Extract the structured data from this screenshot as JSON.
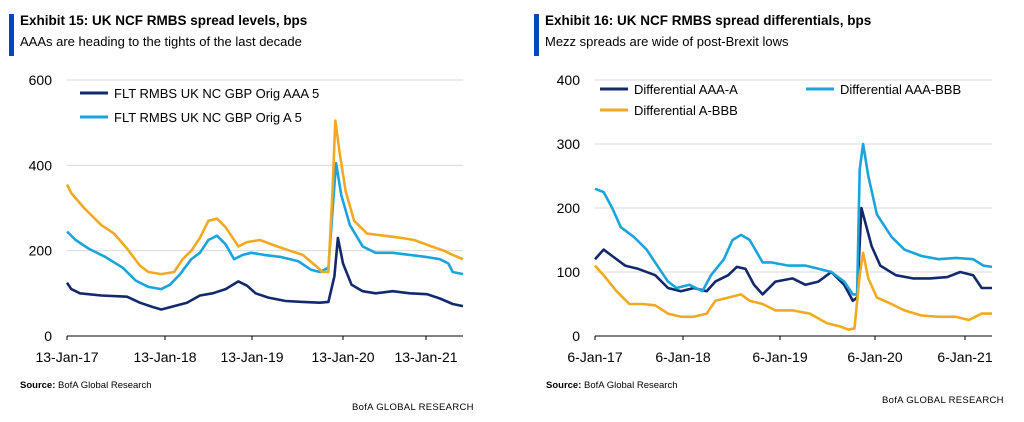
{
  "colors": {
    "accent": "#0047BB",
    "navy": "#13296B",
    "lightblue": "#1BA3DC",
    "orange": "#F2A922"
  },
  "exhibits": [
    {
      "title": "Exhibit 15: UK NCF RMBS spread levels, bps",
      "subtitle": "AAAs are heading to the tights of the last decade",
      "source_label": "Source:",
      "source_text": "BofA Global Research",
      "footer": "BofA GLOBAL RESEARCH"
    },
    {
      "title": "Exhibit 16: UK NCF RMBS spread differentials, bps",
      "subtitle": "Mezz spreads are wide of post-Brexit lows",
      "source_label": "Source:",
      "source_text": "BofA Global Research",
      "footer": "BofA GLOBAL RESEARCH"
    }
  ],
  "chart_data": [
    {
      "type": "line",
      "x_tick_labels": [
        "13-Jan-17",
        "13-Jan-18",
        "13-Jan-19",
        "13-Jan-20",
        "13-Jan-21"
      ],
      "x_range": [
        2017.0,
        2021.62
      ],
      "ylim": [
        0,
        600
      ],
      "y_ticks": [
        0,
        200,
        400,
        600
      ],
      "grid": true,
      "legend_position": "top-left",
      "series": [
        {
          "name": "FLT RMBS UK NC GBP Orig AAA 5",
          "color": "#13296B",
          "legend": true,
          "points": [
            [
              2017.0,
              125
            ],
            [
              2017.05,
              110
            ],
            [
              2017.15,
              100
            ],
            [
              2017.4,
              95
            ],
            [
              2017.7,
              92
            ],
            [
              2017.85,
              78
            ],
            [
              2018.0,
              68
            ],
            [
              2018.1,
              62
            ],
            [
              2018.25,
              70
            ],
            [
              2018.4,
              78
            ],
            [
              2018.55,
              95
            ],
            [
              2018.7,
              100
            ],
            [
              2018.85,
              110
            ],
            [
              2019.0,
              128
            ],
            [
              2019.1,
              118
            ],
            [
              2019.2,
              100
            ],
            [
              2019.35,
              90
            ],
            [
              2019.55,
              82
            ],
            [
              2019.75,
              80
            ],
            [
              2019.95,
              78
            ],
            [
              2020.05,
              80
            ],
            [
              2020.12,
              140
            ],
            [
              2020.16,
              230
            ],
            [
              2020.22,
              170
            ],
            [
              2020.32,
              120
            ],
            [
              2020.45,
              105
            ],
            [
              2020.6,
              100
            ],
            [
              2020.8,
              105
            ],
            [
              2021.0,
              100
            ],
            [
              2021.2,
              98
            ],
            [
              2021.35,
              88
            ],
            [
              2021.5,
              75
            ],
            [
              2021.62,
              70
            ]
          ]
        },
        {
          "name": "FLT RMBS UK NC GBP Orig A 5",
          "color": "#1BA3DC",
          "legend": true,
          "points": [
            [
              2017.0,
              245
            ],
            [
              2017.1,
              225
            ],
            [
              2017.25,
              205
            ],
            [
              2017.45,
              185
            ],
            [
              2017.65,
              160
            ],
            [
              2017.8,
              130
            ],
            [
              2017.95,
              115
            ],
            [
              2018.1,
              110
            ],
            [
              2018.2,
              120
            ],
            [
              2018.32,
              145
            ],
            [
              2018.45,
              180
            ],
            [
              2018.55,
              195
            ],
            [
              2018.65,
              225
            ],
            [
              2018.75,
              235
            ],
            [
              2018.85,
              215
            ],
            [
              2018.95,
              180
            ],
            [
              2019.05,
              190
            ],
            [
              2019.15,
              195
            ],
            [
              2019.3,
              190
            ],
            [
              2019.5,
              185
            ],
            [
              2019.7,
              175
            ],
            [
              2019.85,
              155
            ],
            [
              2019.95,
              150
            ],
            [
              2020.05,
              160
            ],
            [
              2020.1,
              300
            ],
            [
              2020.14,
              405
            ],
            [
              2020.2,
              330
            ],
            [
              2020.3,
              260
            ],
            [
              2020.45,
              210
            ],
            [
              2020.6,
              195
            ],
            [
              2020.8,
              195
            ],
            [
              2021.0,
              190
            ],
            [
              2021.2,
              185
            ],
            [
              2021.35,
              180
            ],
            [
              2021.45,
              170
            ],
            [
              2021.5,
              150
            ],
            [
              2021.62,
              145
            ]
          ]
        },
        {
          "name": "",
          "color": "#F2A922",
          "legend": false,
          "points": [
            [
              2017.0,
              355
            ],
            [
              2017.05,
              335
            ],
            [
              2017.2,
              300
            ],
            [
              2017.4,
              260
            ],
            [
              2017.55,
              240
            ],
            [
              2017.7,
              205
            ],
            [
              2017.85,
              165
            ],
            [
              2017.95,
              150
            ],
            [
              2018.1,
              145
            ],
            [
              2018.25,
              150
            ],
            [
              2018.35,
              180
            ],
            [
              2018.45,
              200
            ],
            [
              2018.55,
              230
            ],
            [
              2018.65,
              270
            ],
            [
              2018.75,
              275
            ],
            [
              2018.85,
              255
            ],
            [
              2019.0,
              210
            ],
            [
              2019.1,
              220
            ],
            [
              2019.25,
              225
            ],
            [
              2019.45,
              210
            ],
            [
              2019.6,
              200
            ],
            [
              2019.75,
              190
            ],
            [
              2019.9,
              165
            ],
            [
              2019.98,
              150
            ],
            [
              2020.05,
              150
            ],
            [
              2020.1,
              350
            ],
            [
              2020.13,
              505
            ],
            [
              2020.18,
              430
            ],
            [
              2020.25,
              340
            ],
            [
              2020.35,
              270
            ],
            [
              2020.5,
              240
            ],
            [
              2020.7,
              235
            ],
            [
              2020.9,
              230
            ],
            [
              2021.05,
              225
            ],
            [
              2021.25,
              210
            ],
            [
              2021.4,
              200
            ],
            [
              2021.5,
              190
            ],
            [
              2021.62,
              180
            ]
          ]
        }
      ]
    },
    {
      "type": "line",
      "x_tick_labels": [
        "6-Jan-17",
        "6-Jan-18",
        "6-Jan-19",
        "6-Jan-20",
        "6-Jan-21"
      ],
      "x_range": [
        2017.0,
        2021.62
      ],
      "ylim": [
        0,
        400
      ],
      "y_ticks": [
        0,
        100,
        200,
        300,
        400
      ],
      "grid": true,
      "legend_position": "top",
      "series": [
        {
          "name": "Differential AAA-A",
          "color": "#13296B",
          "points": [
            [
              2017.0,
              120
            ],
            [
              2017.1,
              135
            ],
            [
              2017.2,
              125
            ],
            [
              2017.35,
              110
            ],
            [
              2017.5,
              105
            ],
            [
              2017.7,
              95
            ],
            [
              2017.85,
              75
            ],
            [
              2018.0,
              70
            ],
            [
              2018.15,
              75
            ],
            [
              2018.3,
              70
            ],
            [
              2018.4,
              85
            ],
            [
              2018.55,
              95
            ],
            [
              2018.65,
              108
            ],
            [
              2018.75,
              105
            ],
            [
              2018.85,
              80
            ],
            [
              2018.95,
              65
            ],
            [
              2019.1,
              85
            ],
            [
              2019.3,
              90
            ],
            [
              2019.45,
              80
            ],
            [
              2019.6,
              85
            ],
            [
              2019.75,
              100
            ],
            [
              2019.9,
              80
            ],
            [
              2020.0,
              55
            ],
            [
              2020.05,
              60
            ],
            [
              2020.1,
              200
            ],
            [
              2020.15,
              175
            ],
            [
              2020.22,
              140
            ],
            [
              2020.32,
              110
            ],
            [
              2020.5,
              95
            ],
            [
              2020.7,
              90
            ],
            [
              2020.9,
              90
            ],
            [
              2021.1,
              92
            ],
            [
              2021.25,
              100
            ],
            [
              2021.4,
              95
            ],
            [
              2021.5,
              75
            ],
            [
              2021.62,
              75
            ]
          ]
        },
        {
          "name": "Differential AAA-BBB",
          "color": "#1BA3DC",
          "points": [
            [
              2017.0,
              230
            ],
            [
              2017.1,
              225
            ],
            [
              2017.2,
              200
            ],
            [
              2017.3,
              170
            ],
            [
              2017.45,
              155
            ],
            [
              2017.6,
              135
            ],
            [
              2017.75,
              105
            ],
            [
              2017.85,
              85
            ],
            [
              2017.95,
              75
            ],
            [
              2018.1,
              80
            ],
            [
              2018.25,
              70
            ],
            [
              2018.35,
              95
            ],
            [
              2018.5,
              120
            ],
            [
              2018.6,
              150
            ],
            [
              2018.7,
              158
            ],
            [
              2018.8,
              150
            ],
            [
              2018.95,
              115
            ],
            [
              2019.05,
              115
            ],
            [
              2019.25,
              110
            ],
            [
              2019.45,
              110
            ],
            [
              2019.6,
              105
            ],
            [
              2019.75,
              100
            ],
            [
              2019.9,
              85
            ],
            [
              2020.0,
              65
            ],
            [
              2020.05,
              65
            ],
            [
              2020.08,
              260
            ],
            [
              2020.12,
              300
            ],
            [
              2020.18,
              250
            ],
            [
              2020.28,
              190
            ],
            [
              2020.45,
              155
            ],
            [
              2020.6,
              135
            ],
            [
              2020.8,
              125
            ],
            [
              2021.0,
              120
            ],
            [
              2021.2,
              122
            ],
            [
              2021.4,
              120
            ],
            [
              2021.52,
              110
            ],
            [
              2021.62,
              108
            ]
          ]
        },
        {
          "name": "Differential A-BBB",
          "color": "#F2A922",
          "points": [
            [
              2017.0,
              110
            ],
            [
              2017.1,
              95
            ],
            [
              2017.25,
              70
            ],
            [
              2017.4,
              50
            ],
            [
              2017.55,
              50
            ],
            [
              2017.7,
              48
            ],
            [
              2017.85,
              35
            ],
            [
              2018.0,
              30
            ],
            [
              2018.15,
              30
            ],
            [
              2018.3,
              35
            ],
            [
              2018.4,
              55
            ],
            [
              2018.55,
              60
            ],
            [
              2018.7,
              65
            ],
            [
              2018.8,
              55
            ],
            [
              2018.95,
              50
            ],
            [
              2019.1,
              40
            ],
            [
              2019.3,
              40
            ],
            [
              2019.5,
              35
            ],
            [
              2019.7,
              20
            ],
            [
              2019.85,
              15
            ],
            [
              2019.95,
              10
            ],
            [
              2020.02,
              12
            ],
            [
              2020.08,
              95
            ],
            [
              2020.12,
              130
            ],
            [
              2020.18,
              90
            ],
            [
              2020.28,
              60
            ],
            [
              2020.45,
              50
            ],
            [
              2020.6,
              40
            ],
            [
              2020.8,
              32
            ],
            [
              2021.0,
              30
            ],
            [
              2021.2,
              30
            ],
            [
              2021.35,
              25
            ],
            [
              2021.5,
              35
            ],
            [
              2021.62,
              35
            ]
          ]
        }
      ]
    }
  ]
}
